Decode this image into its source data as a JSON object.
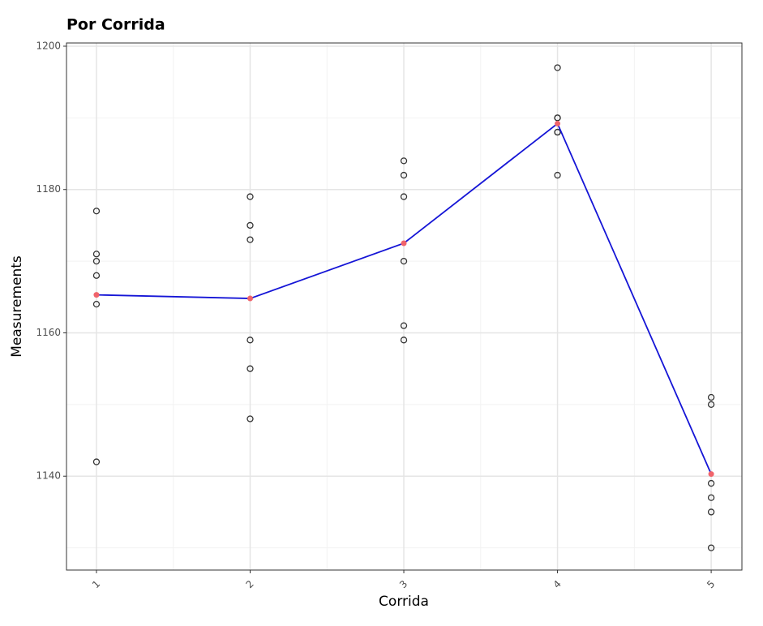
{
  "chart_data": {
    "type": "scatter",
    "title": "Por Corrida",
    "x_label": "Corrida",
    "y_label": "Measurements",
    "points": {
      "color": "#333333",
      "x": [
        1,
        1,
        1,
        1,
        1,
        1,
        2,
        2,
        2,
        2,
        2,
        2,
        3,
        3,
        3,
        3,
        3,
        3,
        4,
        4,
        4,
        4,
        4,
        4,
        5,
        5,
        5,
        5,
        5,
        5
      ],
      "y": [
        1177,
        1171,
        1170,
        1168,
        1164,
        1142,
        1179,
        1175,
        1173,
        1159,
        1155,
        1148,
        1184,
        1182,
        1179,
        1170,
        1161,
        1159,
        1197,
        1190,
        1190,
        1188,
        1188,
        1182,
        1151,
        1150,
        1139,
        1137,
        1135,
        1130
      ]
    },
    "mean_line": {
      "line_color": "#1515d6",
      "point_color": "#f0646b",
      "x": [
        1,
        2,
        3,
        4,
        5
      ],
      "values": [
        1165.3,
        1164.8,
        1172.5,
        1189.2,
        1140.3
      ]
    },
    "xlim": [
      0.805,
      5.2
    ],
    "xticks": [
      1,
      2,
      3,
      4,
      5
    ],
    "x_minor_ticks": [
      1.5,
      2.5,
      3.5,
      4.5
    ],
    "ylim": [
      1126.9,
      1200.45
    ],
    "yticks": [
      1140,
      1160,
      1180,
      1200
    ],
    "y_minor_ticks": [
      1130,
      1150,
      1170,
      1190
    ],
    "grid": true
  }
}
